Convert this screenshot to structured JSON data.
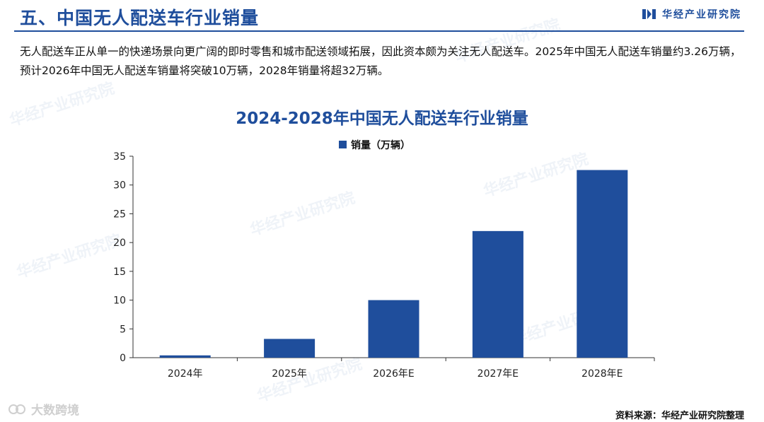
{
  "header": {
    "title": "五、中国无人配送车行业销量",
    "brand": "华经产业研究院"
  },
  "intro": "无人配送车正从单一的快递场景向更广阔的即时零售和城市配送领域拓展，因此资本颇为关注无人配送车。2025年中国无人配送车销量约3.26万辆，预计2026年中国无人配送车销量将突破10万辆，2028年销量将超32万辆。",
  "watermark": "华经产业研究院",
  "chart_data": {
    "type": "bar",
    "title": "2024-2028年中国无人配送车行业销量",
    "categories": [
      "2024年",
      "2025年",
      "2026年E",
      "2027年E",
      "2028年E"
    ],
    "series": [
      {
        "name": "销量（万辆）",
        "values": [
          0.4,
          3.26,
          10,
          22,
          32.6
        ],
        "color": "#1f4e9c"
      }
    ],
    "ylim": [
      0,
      35
    ],
    "yticks": [
      0,
      5,
      10,
      15,
      20,
      25,
      30,
      35
    ],
    "legend_position": "top-center",
    "grid": false
  },
  "source": "资料来源：华经产业研究院整理",
  "footer": {
    "logo_text": "大数跨境"
  }
}
